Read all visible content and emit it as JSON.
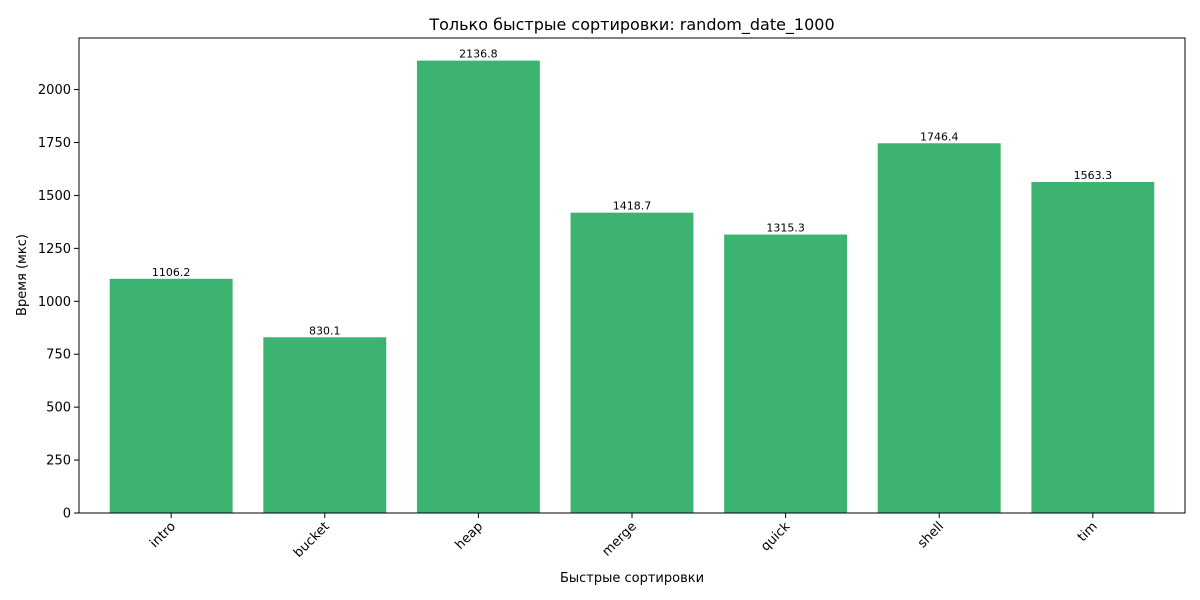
{
  "chart_data": {
    "type": "bar",
    "title": "Только быстрые сортировки: random_date_1000",
    "xlabel": "Быстрые сортировки",
    "ylabel": "Время (мкс)",
    "categories": [
      "intro",
      "bucket",
      "heap",
      "merge",
      "quick",
      "shell",
      "tim"
    ],
    "values": [
      1106.2,
      830.1,
      2136.8,
      1418.7,
      1315.3,
      1746.4,
      1563.3
    ],
    "data_labels": [
      "1106.2",
      "830.1",
      "2136.8",
      "1418.7",
      "1315.3",
      "1746.4",
      "1563.3"
    ],
    "ylim": [
      0,
      2243.6
    ],
    "yticks": [
      0,
      250,
      500,
      750,
      1000,
      1250,
      1500,
      1750,
      2000
    ],
    "bar_color": "#3cb371",
    "grid": false,
    "legend": "none"
  }
}
